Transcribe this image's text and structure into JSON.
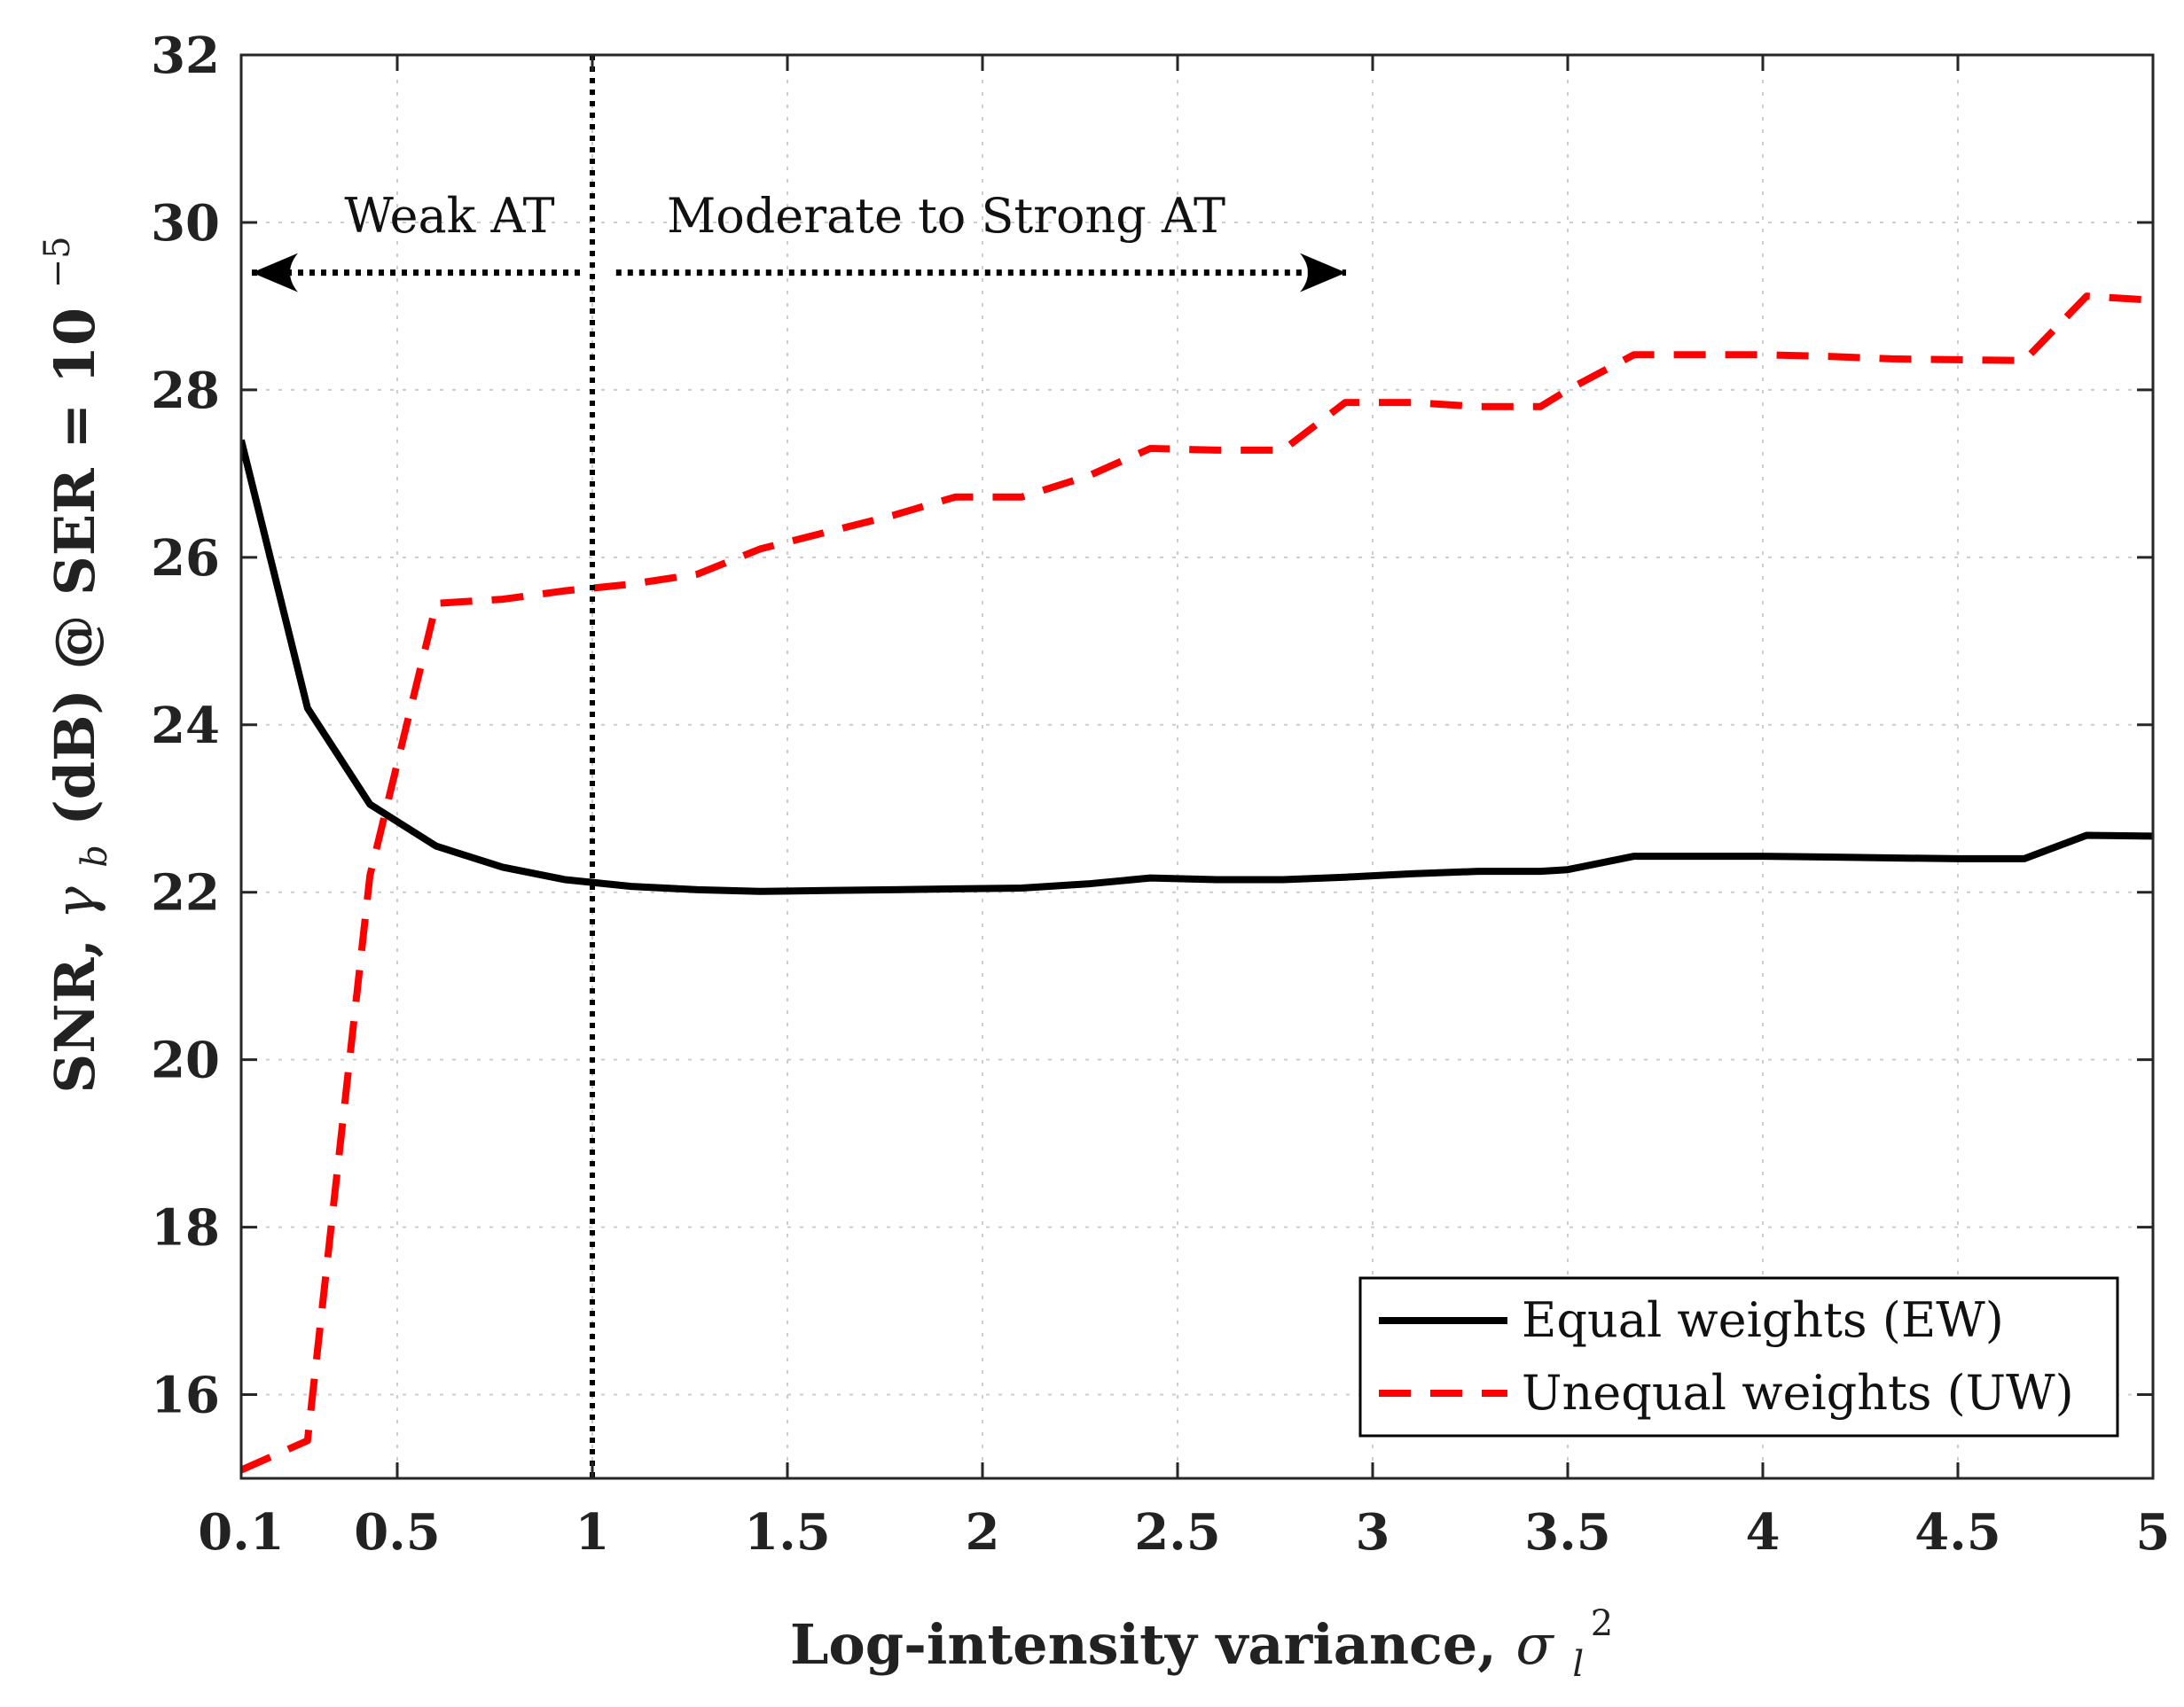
{
  "chart_data": {
    "type": "line",
    "title": "",
    "xlabel": {
      "text": "Log-intensity variance, ",
      "symbol": "σ",
      "symbol_sub": "l",
      "symbol_sup": "2"
    },
    "ylabel": {
      "prefix": "SNR, ",
      "symbol": "γ",
      "symbol_sub": "b",
      "suffix": " (dB) @ SER = 10",
      "exponent": "−5"
    },
    "xlim": [
      0.1,
      5
    ],
    "ylim": [
      15,
      32
    ],
    "xticks": [
      0.1,
      0.5,
      1,
      1.5,
      2,
      2.5,
      3,
      3.5,
      4,
      4.5,
      5
    ],
    "xtick_labels": [
      "0.1",
      "0.5",
      "1",
      "1.5",
      "2",
      "2.5",
      "3",
      "3.5",
      "4",
      "4.5",
      "5"
    ],
    "yticks": [
      16,
      18,
      20,
      22,
      24,
      26,
      28,
      30,
      32
    ],
    "ytick_labels": [
      "16",
      "18",
      "20",
      "22",
      "24",
      "26",
      "28",
      "30",
      "32"
    ],
    "grid": true,
    "legend_position": "bottom-right",
    "series": [
      {
        "name": "Equal weights (EW)",
        "color": "#000000",
        "style": "solid",
        "x": [
          0.1,
          0.27,
          0.43,
          0.6,
          0.77,
          0.93,
          1.1,
          1.27,
          1.43,
          1.6,
          1.77,
          1.93,
          2.1,
          2.27,
          2.43,
          2.6,
          2.77,
          2.93,
          3.1,
          3.27,
          3.43,
          3.5,
          3.67,
          3.83,
          4.0,
          4.17,
          4.33,
          4.5,
          4.67,
          4.83,
          5.0
        ],
        "values": [
          27.4,
          24.2,
          23.05,
          22.55,
          22.3,
          22.15,
          22.07,
          22.03,
          22.01,
          22.02,
          22.03,
          22.04,
          22.05,
          22.1,
          22.17,
          22.15,
          22.15,
          22.18,
          22.22,
          22.25,
          22.25,
          22.27,
          22.43,
          22.43,
          22.43,
          22.42,
          22.41,
          22.4,
          22.4,
          22.68,
          22.67
        ]
      },
      {
        "name": "Unequal weights (UW)",
        "color": "#ff0000",
        "style": "dashed",
        "x": [
          0.1,
          0.27,
          0.43,
          0.6,
          0.77,
          0.93,
          1.1,
          1.27,
          1.43,
          1.6,
          1.77,
          1.93,
          2.1,
          2.27,
          2.43,
          2.6,
          2.77,
          2.93,
          3.1,
          3.27,
          3.43,
          3.5,
          3.67,
          3.83,
          4.0,
          4.17,
          4.33,
          4.5,
          4.67,
          4.83,
          5.0
        ],
        "values": [
          15.1,
          15.45,
          22.2,
          25.45,
          25.5,
          25.6,
          25.68,
          25.8,
          26.1,
          26.3,
          26.5,
          26.72,
          26.72,
          26.97,
          27.3,
          27.28,
          27.28,
          27.85,
          27.85,
          27.8,
          27.8,
          28.0,
          28.42,
          28.42,
          28.42,
          28.4,
          28.37,
          28.36,
          28.35,
          29.12,
          29.07
        ]
      }
    ],
    "annotations": {
      "vline_x": 1,
      "weak_label": "Weak AT",
      "strong_label": "Moderate to Strong AT",
      "arrow_y": 29.4,
      "weak_arrow_x": [
        0.15,
        1.0
      ],
      "strong_arrow_x": [
        1.07,
        2.75
      ]
    }
  }
}
